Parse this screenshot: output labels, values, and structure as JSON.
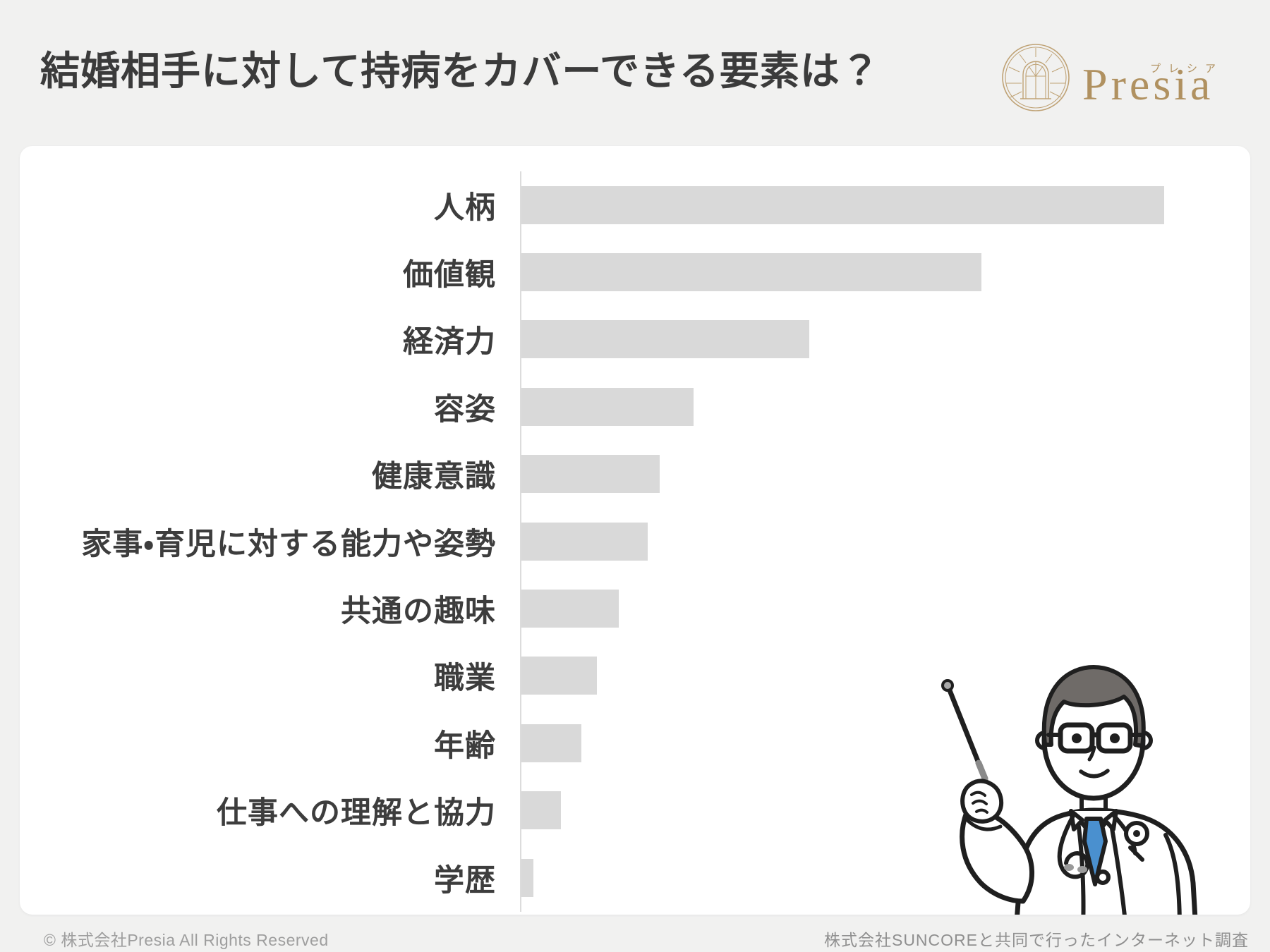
{
  "page": {
    "title": "結婚相手に対して持病をカバーできる要素は？",
    "background_color": "#f1f1f0",
    "card_color": "#ffffff"
  },
  "logo": {
    "brand_name": "Presia",
    "brand_ruby": "プレシア",
    "brand_color": "#b09160",
    "emblem": "arch-window-emblem"
  },
  "chart_data": {
    "type": "bar",
    "orientation": "horizontal",
    "title": "結婚相手に対して持病をカバーできる要素は？",
    "categories": [
      "人柄",
      "価値観",
      "経済力",
      "容姿",
      "健康意識",
      "家事・育児に対する能力や姿勢",
      "共通の趣味",
      "職業",
      "年齢",
      "仕事への理解と協力",
      "学歴"
    ],
    "values": [
      100,
      71.6,
      44.8,
      26.8,
      21.5,
      19.7,
      15.2,
      11.7,
      9.3,
      6.2,
      1.9
    ],
    "values_unit": "relative bar length, % of longest bar (no numeric axis shown in chart)",
    "xlabel": "",
    "ylabel": "",
    "axis_tick_labels": "none",
    "grid": false,
    "legend": false,
    "bar_color": "#d9d9d9",
    "axis_color": "#dcdcdc",
    "label_color": "#3d3d3d"
  },
  "illustration": {
    "name": "doctor-with-pointer",
    "coat_color": "#ffffff",
    "tie_color": "#4a90cf",
    "hair_color": "#6f6b68",
    "outline_color": "#1f1f1f",
    "pointer_color": "#8a8a8a"
  },
  "footer": {
    "left": "© 株式会社Presia All Rights Reserved",
    "right": "株式会社SUNCOREと共同で行ったインターネット調査"
  }
}
